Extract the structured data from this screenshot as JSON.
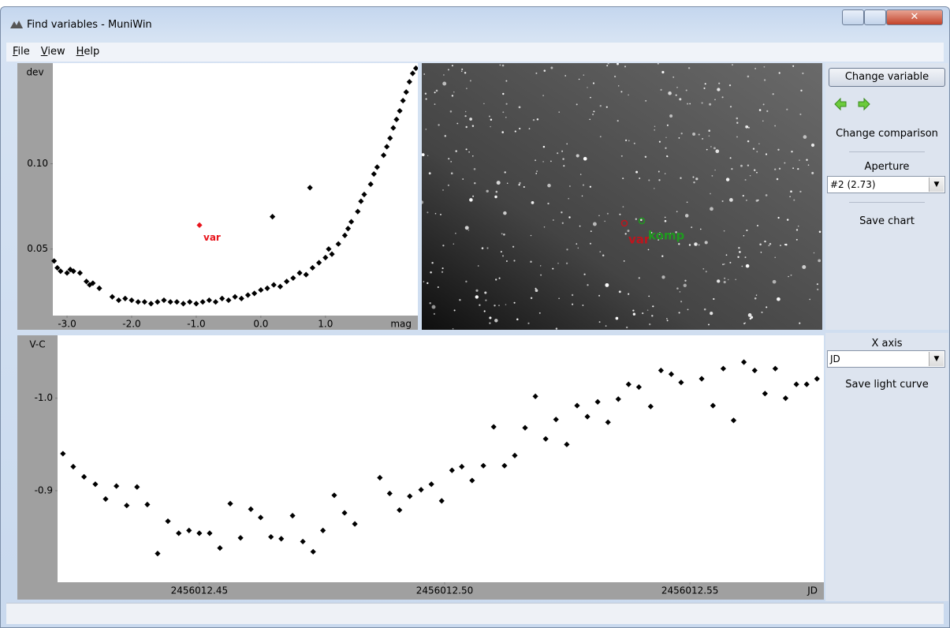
{
  "window": {
    "title": "Find variables - MuniWin"
  },
  "menu": [
    "File",
    "View",
    "Help"
  ],
  "chart_data": [
    {
      "type": "scatter",
      "x_label": "mag",
      "y_label": "dev",
      "color": "#000000",
      "x": [
        -3.2,
        -3.15,
        -3.1,
        -3.0,
        -2.95,
        -2.9,
        -2.8,
        -2.7,
        -2.65,
        -2.6,
        -2.5,
        -2.3,
        -2.2,
        -2.1,
        -2.0,
        -1.9,
        -1.8,
        -1.7,
        -1.6,
        -1.5,
        -1.4,
        -1.3,
        -1.2,
        -1.1,
        -1.0,
        -0.9,
        -0.8,
        -0.7,
        -0.6,
        -0.5,
        -0.4,
        -0.3,
        -0.2,
        -0.1,
        0.0,
        0.1,
        0.2,
        0.3,
        0.4,
        0.5,
        0.6,
        0.7,
        0.8,
        0.9,
        1.0,
        1.05,
        1.1,
        1.2,
        1.3,
        1.35,
        1.4,
        1.5,
        1.55,
        1.6,
        1.7,
        1.75,
        1.8,
        1.9,
        1.95,
        2.0,
        2.05,
        2.1,
        2.15,
        2.2,
        2.25,
        2.3,
        2.35,
        2.4,
        0.18,
        0.76
      ],
      "y": [
        0.043,
        0.039,
        0.037,
        0.036,
        0.038,
        0.037,
        0.036,
        0.031,
        0.029,
        0.03,
        0.027,
        0.022,
        0.02,
        0.021,
        0.02,
        0.019,
        0.019,
        0.018,
        0.019,
        0.02,
        0.019,
        0.019,
        0.018,
        0.019,
        0.018,
        0.019,
        0.02,
        0.019,
        0.021,
        0.02,
        0.022,
        0.021,
        0.023,
        0.024,
        0.026,
        0.027,
        0.029,
        0.028,
        0.031,
        0.033,
        0.036,
        0.035,
        0.039,
        0.042,
        0.045,
        0.05,
        0.047,
        0.053,
        0.058,
        0.062,
        0.066,
        0.072,
        0.078,
        0.082,
        0.088,
        0.094,
        0.098,
        0.105,
        0.11,
        0.115,
        0.121,
        0.126,
        0.131,
        0.137,
        0.142,
        0.148,
        0.153,
        0.156,
        0.069,
        0.086
      ],
      "highlight": {
        "label": "var",
        "x": -0.95,
        "y": 0.064,
        "color": "#e8141c"
      },
      "xlim": [
        -3.22,
        2.43
      ],
      "ylim": [
        0.011,
        0.159
      ],
      "xticks": [
        {
          "value": -3,
          "label": "-3.0"
        },
        {
          "value": -2,
          "label": "-2.0"
        },
        {
          "value": -1,
          "label": "-1.0"
        },
        {
          "value": 0,
          "label": "0.0"
        },
        {
          "value": 1,
          "label": "1.0"
        }
      ],
      "yticks": [
        0.05,
        {
          "value": 0.1,
          "label": "0.10"
        }
      ]
    },
    {
      "type": "scatter",
      "x_label": "JD",
      "y_label": "V-C",
      "color": "#000000",
      "x": [
        2456012.4222,
        2456012.4243,
        2456012.4265,
        2456012.4288,
        2456012.4309,
        2456012.4331,
        2456012.4352,
        2456012.4373,
        2456012.4394,
        2456012.4415,
        2456012.4436,
        2456012.4458,
        2456012.4479,
        2456012.45,
        2456012.4521,
        2456012.4542,
        2456012.4563,
        2456012.4584,
        2456012.4605,
        2456012.4625,
        2456012.4646,
        2456012.4667,
        2456012.469,
        2456012.4711,
        2456012.4732,
        2456012.4752,
        2456012.4775,
        2456012.4796,
        2456012.4817,
        2456012.4868,
        2456012.4888,
        2456012.4908,
        2456012.4929,
        2456012.4952,
        2456012.4973,
        2456012.4994,
        2456012.5015,
        2456012.5035,
        2456012.5056,
        2456012.5079,
        2456012.51,
        2456012.5122,
        2456012.5143,
        2456012.5164,
        2456012.5185,
        2456012.5206,
        2456012.5227,
        2456012.5249,
        2456012.527,
        2456012.5291,
        2456012.5312,
        2456012.5333,
        2456012.5354,
        2456012.5375,
        2456012.5396,
        2456012.542,
        2456012.5441,
        2456012.5462,
        2456012.5482,
        2456012.5524,
        2456012.5547,
        2456012.5568,
        2456012.5589,
        2456012.561,
        2456012.5632,
        2456012.5653,
        2456012.5674,
        2456012.5695,
        2456012.5717,
        2456012.5738,
        2456012.5759
      ],
      "y": [
        -0.94,
        -0.926,
        -0.915,
        -0.907,
        -0.891,
        -0.905,
        -0.884,
        -0.904,
        -0.885,
        -0.832,
        -0.867,
        -0.854,
        -0.857,
        -0.854,
        -0.854,
        -0.838,
        -0.886,
        -0.849,
        -0.88,
        -0.871,
        -0.85,
        -0.848,
        -0.873,
        -0.845,
        -0.834,
        -0.857,
        -0.895,
        -0.876,
        -0.864,
        -0.914,
        -0.897,
        -0.879,
        -0.894,
        -0.901,
        -0.907,
        -0.889,
        -0.922,
        -0.926,
        -0.911,
        -0.927,
        -0.969,
        -0.927,
        -0.938,
        -0.968,
        -1.002,
        -0.956,
        -0.977,
        -0.95,
        -0.992,
        -0.98,
        -0.996,
        -0.974,
        -0.999,
        -1.015,
        -1.012,
        -0.991,
        -1.03,
        -1.026,
        -1.017,
        -1.021,
        -0.992,
        -1.032,
        -0.976,
        -1.039,
        -1.03,
        -1.005,
        -1.032,
        -1.0,
        -1.015,
        -1.015,
        -1.021
      ],
      "xlim": [
        2456012.4211,
        2456012.5773
      ],
      "ylim": [
        -0.801,
        -1.068
      ],
      "xticks": [
        2456012.45,
        {
          "value": 2456012.5,
          "label": "2456012.50"
        },
        2456012.55
      ],
      "yticks": [
        {
          "value": -1,
          "label": "-1.0"
        },
        -0.9
      ]
    }
  ],
  "image_panel": {
    "markers": [
      {
        "label": "var",
        "color": "#c0141c"
      },
      {
        "label": "komp",
        "color": "#1f9a1f"
      }
    ]
  },
  "side_panel_top": {
    "change_variable": "Change variable",
    "change_comparison": "Change comparison",
    "aperture_label": "Aperture",
    "aperture_value": "#2 (2.73)",
    "save_chart": "Save chart"
  },
  "side_panel_bottom": {
    "x_axis_label": "X axis",
    "x_axis_value": "JD",
    "save_light_curve": "Save light curve"
  }
}
